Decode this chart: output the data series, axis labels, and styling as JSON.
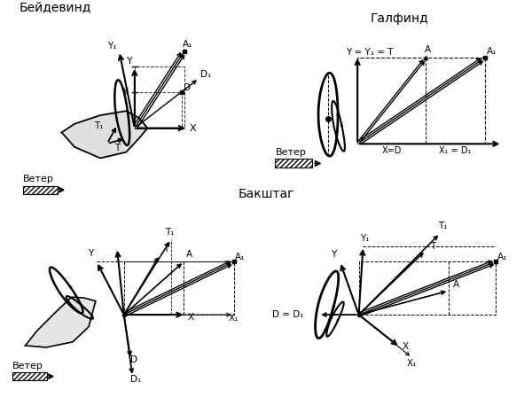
{
  "title_beidewind": "Бейдевинд",
  "title_galfind": "Галфинд",
  "title_bakshtag": "Бакштаг",
  "wind_label": "Ветер",
  "bg_color": "#ffffff"
}
